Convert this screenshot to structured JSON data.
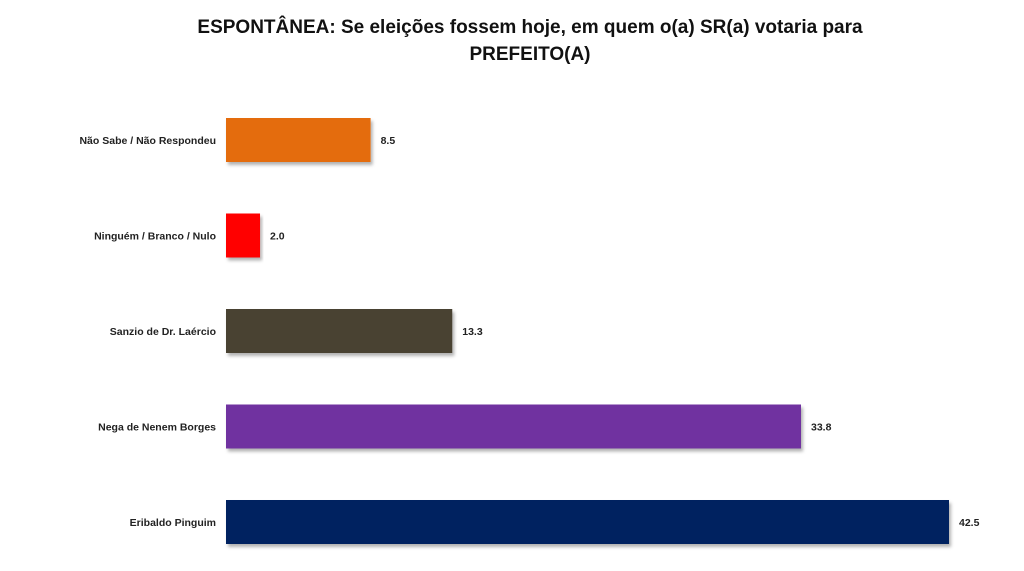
{
  "chart_data": {
    "type": "bar",
    "orientation": "horizontal",
    "title_line1": "ESPONTÂNEA: Se eleições fossem hoje, em quem o(a) SR(a) votaria para",
    "title_line2": "PREFEITO(A)",
    "xlabel": "",
    "ylabel": "",
    "xlim": [
      0,
      42.5
    ],
    "grid": false,
    "legend": "none",
    "categories": [
      "Não Sabe / Não Respondeu",
      "Ninguém / Branco / Nulo",
      "Sanzio de Dr. Laércio",
      "Nega de Nenem Borges",
      "Eribaldo Pinguim"
    ],
    "values": [
      8.5,
      2.0,
      13.3,
      33.8,
      42.5
    ],
    "value_labels": [
      "8.5",
      "2.0",
      "13.3",
      "33.8",
      "42.5"
    ],
    "colors": [
      "#e46c0a",
      "#ff0000",
      "#4a4330",
      "#7030a0",
      "#002060"
    ]
  }
}
